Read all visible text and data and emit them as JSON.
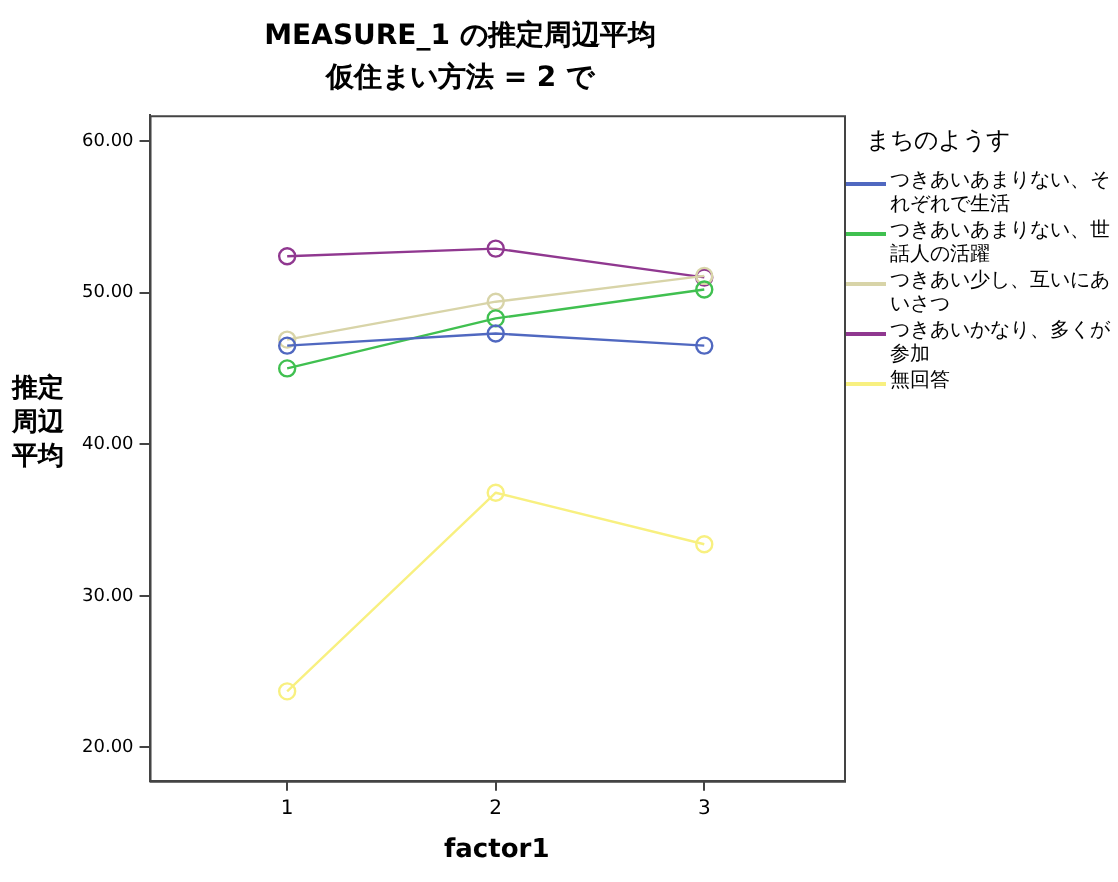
{
  "chart_data": {
    "type": "line",
    "title": "MEASURE_1 の推定周辺平均",
    "subtitle": "仮住まい方法 = 2 で",
    "xlabel": "factor1",
    "ylabel": "推定周辺平均",
    "legend_title": "まちのようす",
    "x": [
      1,
      2,
      3
    ],
    "xlim": [
      0.34,
      3.67
    ],
    "xticks": [
      1,
      2,
      3
    ],
    "ylim": [
      17.8,
      61.7
    ],
    "yticks": [
      {
        "value": 20,
        "label": "20.00"
      },
      {
        "value": 30,
        "label": "30.00"
      },
      {
        "value": 40,
        "label": "40.00"
      },
      {
        "value": 50,
        "label": "50.00"
      },
      {
        "value": 60,
        "label": "60.00"
      }
    ],
    "series": [
      {
        "name": "つきあいあまりない、それぞれで生活",
        "color": "#5068c0",
        "values": [
          46.5,
          47.3,
          46.5
        ]
      },
      {
        "name": "つきあいあまりない、世話人の活躍",
        "color": "#40c050",
        "values": [
          45.0,
          48.3,
          50.2
        ]
      },
      {
        "name": "つきあい少し、互いにあいさつ",
        "color": "#d8d4a8",
        "values": [
          46.9,
          49.4,
          51.1
        ]
      },
      {
        "name": "つきあいかなり、多くが参加",
        "color": "#903890",
        "values": [
          52.4,
          52.9,
          51.0
        ]
      },
      {
        "name": "無回答",
        "color": "#f8f080",
        "values": [
          23.7,
          36.8,
          33.4
        ]
      }
    ],
    "grid": false,
    "legend": "right",
    "marker": "circle",
    "line_style": "solid"
  }
}
